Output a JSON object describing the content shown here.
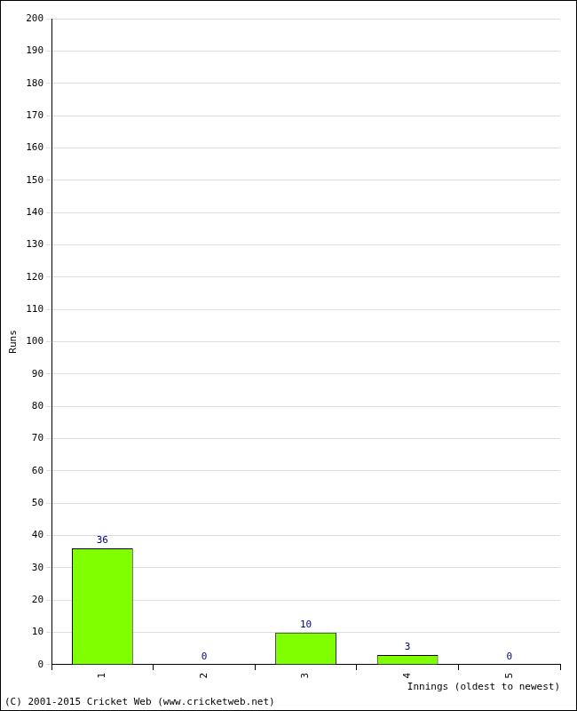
{
  "chart_data": {
    "type": "bar",
    "categories": [
      "1",
      "2",
      "3",
      "4",
      "5"
    ],
    "values": [
      36,
      0,
      10,
      3,
      0
    ],
    "color": "#80ff00",
    "ylim": [
      0,
      200
    ],
    "yticks": [
      0,
      10,
      20,
      30,
      40,
      50,
      60,
      70,
      80,
      90,
      100,
      110,
      120,
      130,
      140,
      150,
      160,
      170,
      180,
      190,
      200
    ],
    "grid": true,
    "data_labels": true,
    "y_label": "Runs",
    "x_label": "Innings (oldest to newest)",
    "footer": "(C) 2001-2015 Cricket Web (www.cricketweb.net)"
  }
}
